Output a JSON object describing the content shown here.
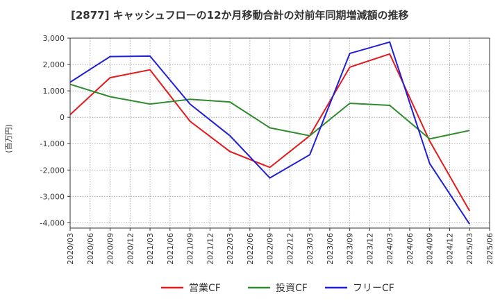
{
  "chart_data": {
    "type": "line",
    "title": "[2877]  キャッシュフローの12か月移動合計の対前年同期増減額の推移",
    "ylabel": "(百万円)",
    "xlabel": "",
    "ylim": [
      -4200,
      3000
    ],
    "yticks": [
      3000,
      2000,
      1000,
      0,
      -1000,
      -2000,
      -3000,
      -4000
    ],
    "ytick_labels": [
      "3,000",
      "2,000",
      "1,000",
      "0",
      "-1,000",
      "-2,000",
      "-3,000",
      "-4,000"
    ],
    "categories": [
      "2020/03",
      "2020/06",
      "2020/09",
      "2020/12",
      "2021/03",
      "2021/06",
      "2021/09",
      "2021/12",
      "2022/03",
      "2022/06",
      "2022/09",
      "2022/12",
      "2023/03",
      "2023/06",
      "2023/09",
      "2023/12",
      "2024/03",
      "2024/06",
      "2024/09",
      "2024/12",
      "2025/03",
      "2025/06"
    ],
    "grid": true,
    "legend_position": "bottom",
    "series": [
      {
        "name": "営業CF",
        "color": "#e41a1c",
        "x": [
          "2020/03",
          "2020/09",
          "2021/03",
          "2021/09",
          "2022/03",
          "2022/09",
          "2023/03",
          "2023/09",
          "2024/03",
          "2024/09",
          "2025/03"
        ],
        "values": [
          100,
          1500,
          1800,
          -150,
          -1300,
          -1900,
          -700,
          1900,
          2400,
          -900,
          -3550
        ]
      },
      {
        "name": "投資CF",
        "color": "#2e8b2e",
        "x": [
          "2020/03",
          "2020/09",
          "2021/03",
          "2021/09",
          "2022/03",
          "2022/09",
          "2023/03",
          "2023/09",
          "2024/03",
          "2024/09",
          "2025/03"
        ],
        "values": [
          1250,
          780,
          500,
          680,
          580,
          -400,
          -700,
          530,
          450,
          -820,
          -500
        ]
      },
      {
        "name": "フリーCF",
        "color": "#1f1fd6",
        "x": [
          "2020/03",
          "2020/09",
          "2021/03",
          "2021/09",
          "2022/03",
          "2022/09",
          "2023/03",
          "2023/09",
          "2024/03",
          "2024/09",
          "2025/03"
        ],
        "values": [
          1330,
          2300,
          2320,
          500,
          -700,
          -2300,
          -1420,
          2420,
          2850,
          -1750,
          -4050
        ]
      }
    ]
  }
}
